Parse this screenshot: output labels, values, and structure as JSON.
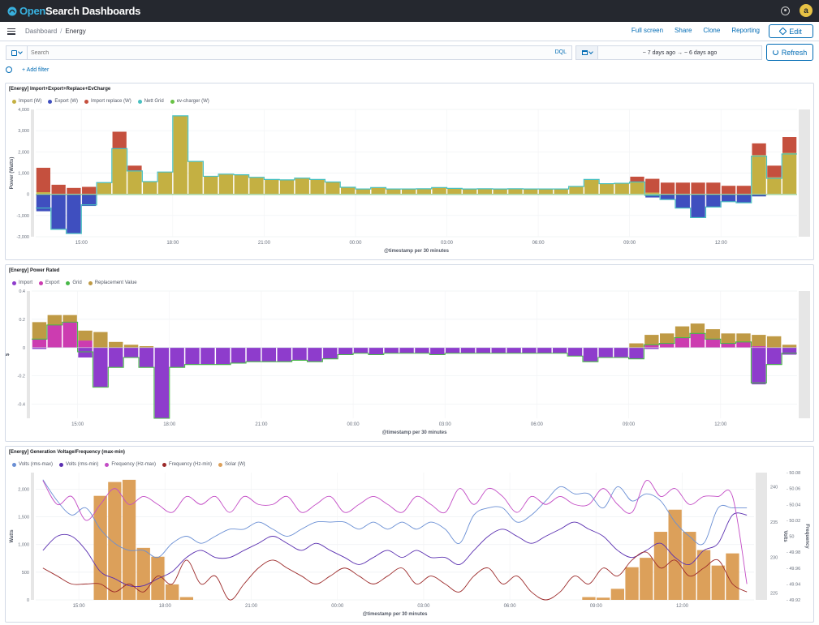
{
  "app": {
    "logo_prefix": "Open",
    "logo_suffix": "Search Dashboards",
    "avatar_letter": "a"
  },
  "breadcrumb": {
    "root": "Dashboard",
    "current": "Energy"
  },
  "nav": {
    "full_screen": "Full screen",
    "share": "Share",
    "clone": "Clone",
    "reporting": "Reporting",
    "edit": "Edit"
  },
  "search": {
    "placeholder": "Search",
    "language": "DQL"
  },
  "time": {
    "from": "~ 7 days ago",
    "arrow": "→",
    "to": "~ 6 days ago",
    "refresh": "Refresh"
  },
  "filters": {
    "add": "+ Add filter"
  },
  "colors": {
    "accent": "#006bb4",
    "topbar": "#25282f"
  },
  "panels": [
    {
      "title": "[Energy] Import+Export+Replace+EvCharge",
      "legend": [
        {
          "label": "Import (W)",
          "color": "#c4b042"
        },
        {
          "label": "Export (W)",
          "color": "#3f4fbf"
        },
        {
          "label": "Import replace (W)",
          "color": "#c5503e"
        },
        {
          "label": "Nett Grid",
          "color": "#48c0c0"
        },
        {
          "label": "ev-charger (W)",
          "color": "#68c245"
        }
      ]
    },
    {
      "title": "[Energy] Power Rated",
      "legend": [
        {
          "label": "Import",
          "color": "#8e3ccc"
        },
        {
          "label": "Export",
          "color": "#cc3cb0"
        },
        {
          "label": "Grid",
          "color": "#48b848"
        },
        {
          "label": "Replacement Value",
          "color": "#bf9a45"
        }
      ]
    },
    {
      "title": "[Energy] Generation Voltage/Frequency (max-min)",
      "legend": [
        {
          "label": "Volts (rms-max)",
          "color": "#6a8fd4"
        },
        {
          "label": "Volts (rms-min)",
          "color": "#5a2fb0"
        },
        {
          "label": "Frequency (Hz-max)",
          "color": "#c34cc5"
        },
        {
          "label": "Frequency (Hz-min)",
          "color": "#9c2a2a"
        },
        {
          "label": "Solar (W)",
          "color": "#dca05a"
        }
      ]
    }
  ],
  "chart_data": [
    {
      "type": "bar",
      "title": "[Energy] Import+Export+Replace+EvCharge",
      "xlabel": "@timestamp per 30 minutes",
      "ylabel": "Power (Watts)",
      "ylim": [
        -2000,
        4000
      ],
      "yticks": [
        "-2,000",
        "-1,000",
        "0",
        "1,000",
        "2,000",
        "3,000",
        "4,000"
      ],
      "xticks": [
        "15:00",
        "18:00",
        "21:00",
        "00:00",
        "03:00",
        "06:00",
        "09:00",
        "12:00"
      ],
      "xtick_index": [
        3,
        9,
        15,
        21,
        27,
        33,
        39,
        45
      ],
      "series": [
        {
          "name": "Import (W)",
          "values": [
            100,
            0,
            0,
            0,
            550,
            2150,
            1100,
            600,
            1050,
            3700,
            1550,
            850,
            950,
            920,
            800,
            700,
            680,
            760,
            700,
            580,
            330,
            250,
            320,
            250,
            250,
            260,
            320,
            280,
            250,
            260,
            250,
            260,
            250,
            250,
            250,
            370,
            700,
            500,
            520,
            580,
            80,
            0,
            0,
            0,
            0,
            0,
            0,
            1850,
            800,
            1950
          ]
        },
        {
          "name": "Export (W)",
          "values": [
            -800,
            -1650,
            -1850,
            -550,
            0,
            0,
            0,
            0,
            0,
            0,
            0,
            0,
            0,
            0,
            0,
            0,
            0,
            0,
            0,
            0,
            0,
            0,
            0,
            0,
            0,
            0,
            0,
            0,
            0,
            0,
            0,
            0,
            0,
            0,
            0,
            0,
            0,
            0,
            0,
            0,
            -150,
            -250,
            -650,
            -1100,
            -600,
            -350,
            -400,
            -100,
            0,
            0
          ]
        },
        {
          "name": "Import replace (W)",
          "values": [
            1150,
            450,
            300,
            350,
            0,
            800,
            250,
            0,
            0,
            0,
            0,
            0,
            0,
            0,
            0,
            0,
            0,
            0,
            0,
            0,
            0,
            0,
            0,
            0,
            0,
            0,
            0,
            0,
            0,
            0,
            0,
            0,
            0,
            0,
            0,
            0,
            0,
            0,
            0,
            250,
            650,
            550,
            550,
            550,
            550,
            400,
            400,
            550,
            550,
            750
          ]
        },
        {
          "name": "Nett Grid",
          "values": [
            -650,
            -1650,
            -1850,
            -500,
            550,
            2150,
            1100,
            600,
            1050,
            3700,
            1550,
            850,
            950,
            920,
            800,
            700,
            680,
            760,
            700,
            580,
            330,
            250,
            320,
            250,
            250,
            260,
            320,
            280,
            250,
            260,
            250,
            260,
            250,
            250,
            250,
            370,
            700,
            500,
            520,
            580,
            -50,
            -250,
            -650,
            -1100,
            -600,
            -350,
            -400,
            1800,
            750,
            1900
          ]
        },
        {
          "name": "ev-charger (W)",
          "values": [
            0,
            0,
            0,
            0,
            0,
            0,
            0,
            0,
            0,
            0,
            0,
            0,
            0,
            0,
            0,
            0,
            0,
            0,
            0,
            0,
            0,
            0,
            0,
            0,
            0,
            0,
            0,
            0,
            0,
            0,
            0,
            0,
            0,
            0,
            0,
            0,
            0,
            0,
            0,
            0,
            0,
            0,
            0,
            0,
            0,
            0,
            0,
            0,
            0,
            0
          ]
        }
      ]
    },
    {
      "type": "bar",
      "title": "[Energy] Power Rated",
      "xlabel": "@timestamp per 30 minutes",
      "ylabel": "$",
      "ylim": [
        -0.5,
        0.4
      ],
      "yticks": [
        "-0.4",
        "-0.2",
        "0",
        "0.2",
        "0.4"
      ],
      "xticks": [
        "15:00",
        "18:00",
        "21:00",
        "00:00",
        "03:00",
        "06:00",
        "09:00",
        "12:00"
      ],
      "xtick_index": [
        3,
        9,
        15,
        21,
        27,
        33,
        39,
        45
      ],
      "series": [
        {
          "name": "Import",
          "values": [
            -0.01,
            0,
            0,
            -0.07,
            -0.28,
            -0.14,
            -0.07,
            -0.14,
            -0.5,
            -0.14,
            -0.12,
            -0.12,
            -0.12,
            -0.11,
            -0.1,
            -0.1,
            -0.1,
            -0.09,
            -0.1,
            -0.08,
            -0.05,
            -0.04,
            -0.05,
            -0.04,
            -0.04,
            -0.04,
            -0.05,
            -0.04,
            -0.04,
            -0.04,
            -0.04,
            -0.04,
            -0.04,
            -0.04,
            -0.04,
            -0.06,
            -0.1,
            -0.07,
            -0.07,
            -0.08,
            -0.01,
            0,
            0,
            0,
            0,
            0,
            0,
            -0.26,
            -0.12,
            -0.05
          ]
        },
        {
          "name": "Export",
          "values": [
            0.06,
            0.16,
            0.18,
            0.05,
            0,
            0,
            0,
            0,
            0,
            0,
            0,
            0,
            0,
            0,
            0,
            0,
            0,
            0,
            0,
            0,
            0,
            0,
            0,
            0,
            0,
            0,
            0,
            0,
            0,
            0,
            0,
            0,
            0,
            0,
            0,
            0,
            0,
            0,
            0,
            0,
            0.02,
            0.03,
            0.07,
            0.1,
            0.06,
            0.03,
            0.04,
            0.01,
            0,
            0
          ]
        },
        {
          "name": "Grid",
          "values": [
            0.06,
            0.16,
            0.18,
            -0.03,
            -0.28,
            -0.14,
            -0.07,
            -0.14,
            -0.5,
            -0.14,
            -0.12,
            -0.12,
            -0.12,
            -0.11,
            -0.1,
            -0.1,
            -0.1,
            -0.09,
            -0.1,
            -0.08,
            -0.05,
            -0.04,
            -0.05,
            -0.04,
            -0.04,
            -0.04,
            -0.05,
            -0.04,
            -0.04,
            -0.04,
            -0.04,
            -0.04,
            -0.04,
            -0.04,
            -0.04,
            -0.06,
            -0.1,
            -0.07,
            -0.07,
            -0.08,
            0.02,
            0.03,
            0.07,
            0.1,
            0.06,
            0.03,
            0.04,
            -0.25,
            -0.12,
            -0.04
          ]
        },
        {
          "name": "Replacement Value",
          "values": [
            0.12,
            0.07,
            0.05,
            0.07,
            0.11,
            0.04,
            0.02,
            0.01,
            0,
            0,
            0,
            0,
            0,
            0,
            0,
            0,
            0,
            0,
            0,
            0,
            0,
            0,
            0,
            0,
            0,
            0,
            0,
            0,
            0,
            0,
            0,
            0,
            0,
            0,
            0,
            0,
            0,
            0,
            0,
            0.03,
            0.07,
            0.07,
            0.08,
            0.07,
            0.07,
            0.07,
            0.06,
            0.08,
            0.08,
            0.02
          ]
        }
      ]
    },
    {
      "type": "bar",
      "title": "[Energy] Generation Voltage/Frequency (max-min)",
      "xlabel": "@timestamp per 30 minutes",
      "ylabel": "Watts",
      "ylabel_right_1": "Volts",
      "ylabel_right_2": "Frequency",
      "ylim": [
        0,
        2300
      ],
      "yticks": [
        "0",
        "500",
        "1,000",
        "1,500",
        "2,000"
      ],
      "volts_ticks": [
        "225",
        "230",
        "235",
        "240"
      ],
      "volts_lim": [
        224,
        242
      ],
      "freq_ticks": [
        "49.92",
        "49.94",
        "49.96",
        "49.98",
        "50",
        "50.02",
        "50.04",
        "50.06",
        "50.08"
      ],
      "freq_lim": [
        49.92,
        50.08
      ],
      "xticks": [
        "15:00",
        "18:00",
        "21:00",
        "00:00",
        "03:00",
        "06:00",
        "09:00",
        "12:00"
      ],
      "xtick_index": [
        3,
        9,
        15,
        21,
        27,
        33,
        39,
        45
      ],
      "series": [
        {
          "name": "Solar (W)",
          "values": [
            0,
            0,
            0,
            0,
            1880,
            2130,
            2170,
            940,
            780,
            280,
            50,
            0,
            0,
            0,
            0,
            0,
            0,
            0,
            0,
            0,
            0,
            0,
            0,
            0,
            0,
            0,
            0,
            0,
            0,
            0,
            0,
            0,
            0,
            0,
            0,
            0,
            0,
            0,
            50,
            40,
            200,
            590,
            760,
            1230,
            1630,
            1230,
            900,
            620,
            840,
            0
          ]
        },
        {
          "name": "Volts (rms-max)",
          "values": [
            241,
            238,
            236,
            237,
            234,
            232,
            231,
            231,
            230,
            232,
            233,
            232,
            233,
            234,
            234,
            235,
            234,
            233,
            234,
            235,
            235,
            235,
            234,
            235,
            234,
            235,
            234,
            235,
            234,
            232,
            236,
            237,
            237,
            235,
            236,
            238,
            240,
            239,
            239,
            237,
            240,
            238,
            239,
            238,
            235,
            233,
            232,
            237,
            237,
            237
          ]
        },
        {
          "name": "Volts (rms-min)",
          "values": [
            231,
            233,
            233,
            231,
            228,
            227,
            226,
            226,
            227,
            228,
            230,
            231,
            230,
            230,
            231,
            232,
            233,
            232,
            231,
            232,
            231,
            230,
            229,
            230,
            231,
            230,
            231,
            230,
            230,
            229,
            231,
            233,
            234,
            233,
            232,
            233,
            234,
            235,
            234,
            233,
            231,
            230,
            231,
            232,
            230,
            229,
            231,
            232,
            236,
            236
          ]
        },
        {
          "name": "Frequency (Hz-max)",
          "values": [
            50.07,
            50.04,
            50.05,
            50.02,
            50.04,
            50.06,
            50.04,
            50.05,
            50.04,
            50.03,
            50.05,
            50.04,
            50.05,
            50.03,
            50.05,
            50.04,
            50.04,
            50.05,
            50.03,
            50.04,
            50.05,
            50.03,
            50.04,
            50.05,
            50.04,
            50.03,
            50.05,
            50.04,
            50.03,
            50.06,
            50.04,
            50.06,
            50.05,
            50.03,
            50.05,
            50.04,
            50.05,
            50.04,
            50.04,
            50.06,
            50.04,
            50.03,
            50.07,
            50.05,
            50.06,
            50.04,
            50.05,
            50.05,
            50.05,
            49.94
          ]
        },
        {
          "name": "Frequency (Hz-min)",
          "values": [
            49.96,
            49.95,
            49.94,
            49.94,
            49.94,
            49.93,
            49.94,
            49.93,
            49.95,
            49.94,
            49.97,
            49.94,
            49.95,
            49.92,
            49.94,
            49.96,
            49.97,
            49.96,
            49.95,
            49.94,
            49.95,
            49.96,
            49.95,
            49.94,
            49.95,
            49.96,
            49.94,
            49.95,
            49.94,
            49.93,
            49.95,
            49.96,
            49.94,
            49.95,
            49.93,
            49.92,
            49.93,
            49.95,
            49.94,
            49.96,
            49.95,
            49.97,
            49.98,
            49.96,
            49.97,
            49.95,
            49.96,
            49.97,
            49.94,
            49.93
          ]
        }
      ]
    }
  ]
}
